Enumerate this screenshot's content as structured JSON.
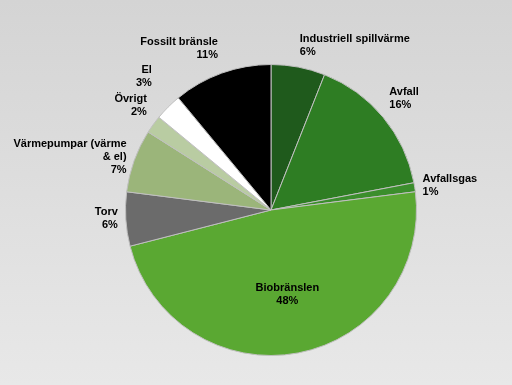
{
  "chart_data": {
    "type": "pie",
    "categories": [
      "Industriell spillvärme",
      "Avfall",
      "Avfallsgas",
      "Biobränslen",
      "Torv",
      "Värmepumpar (värme & el)",
      "Övrigt",
      "El",
      "Fossilt bränsle"
    ],
    "values": [
      6,
      16,
      1,
      48,
      6,
      7,
      2,
      3,
      11
    ],
    "value_labels": [
      "6%",
      "16%",
      "1%",
      "48%",
      "6%",
      "7%",
      "2%",
      "3%",
      "11%"
    ],
    "colors": [
      "#1f5a1c",
      "#2e7d23",
      "#3b8e2c",
      "#5aa832",
      "#6b6b6b",
      "#9bb57a",
      "#b9cca2",
      "#ffffff",
      "#000000"
    ],
    "data_labels": true
  }
}
